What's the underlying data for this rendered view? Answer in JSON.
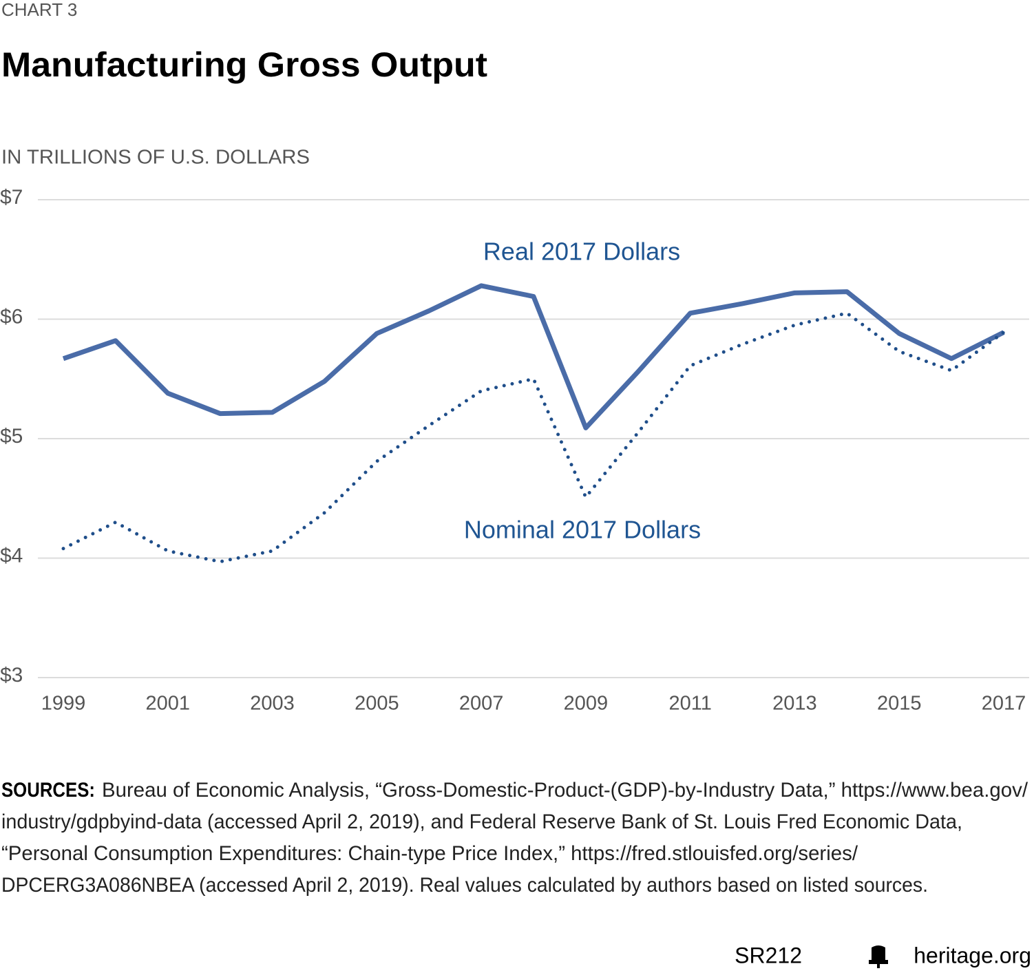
{
  "chart_data": {
    "type": "line",
    "label": "CHART 3",
    "title": "Manufacturing Gross Output",
    "subtitle": "IN TRILLIONS OF U.S. DOLLARS",
    "x": [
      1999,
      2000,
      2001,
      2002,
      2003,
      2004,
      2005,
      2006,
      2007,
      2008,
      2009,
      2010,
      2011,
      2012,
      2013,
      2014,
      2015,
      2016,
      2017
    ],
    "series": [
      {
        "name": "Real 2017 Dollars",
        "color": "#4a6ca8",
        "style": "solid",
        "values": [
          5.67,
          5.82,
          5.38,
          5.21,
          5.22,
          5.48,
          5.88,
          6.07,
          6.28,
          6.19,
          5.09,
          5.56,
          6.05,
          6.13,
          6.22,
          6.23,
          5.88,
          5.67,
          5.89
        ]
      },
      {
        "name": "Nominal 2017 Dollars",
        "color": "#1f4e8a",
        "style": "dotted",
        "values": [
          4.08,
          4.3,
          4.06,
          3.97,
          4.06,
          4.38,
          4.81,
          5.11,
          5.4,
          5.5,
          4.51,
          5.05,
          5.61,
          5.79,
          5.95,
          6.05,
          5.73,
          5.57,
          5.89
        ]
      }
    ],
    "xlim": [
      1999,
      2017
    ],
    "xticks": [
      1999,
      2001,
      2003,
      2005,
      2007,
      2009,
      2011,
      2013,
      2015,
      2017
    ],
    "ylim": [
      3,
      7
    ],
    "yticks": [
      {
        "value": 3,
        "label": "$3"
      },
      {
        "value": 4,
        "label": "$4"
      },
      {
        "value": 5,
        "label": "$5"
      },
      {
        "value": 6,
        "label": "$6"
      },
      {
        "value": 7,
        "label": "$7"
      }
    ],
    "grid": true,
    "source_label": "SOURCES:",
    "source_lines": [
      "Bureau of Economic Analysis, “Gross-Domestic-Product-(GDP)-by-Industry Data,” https://www.bea.gov/",
      "industry/gdpbyind-data (accessed April 2, 2019), and Federal Reserve Bank of St. Louis Fred Economic Data,",
      "“Personal Consumption Expenditures: Chain-type Price Index,” https://fred.stlouisfed.org/series/",
      "DPCERG3A086NBEA (accessed April 2, 2019). Real values calculated by authors based on listed sources."
    ],
    "footer_code": "SR212",
    "footer_site": "heritage.org"
  }
}
